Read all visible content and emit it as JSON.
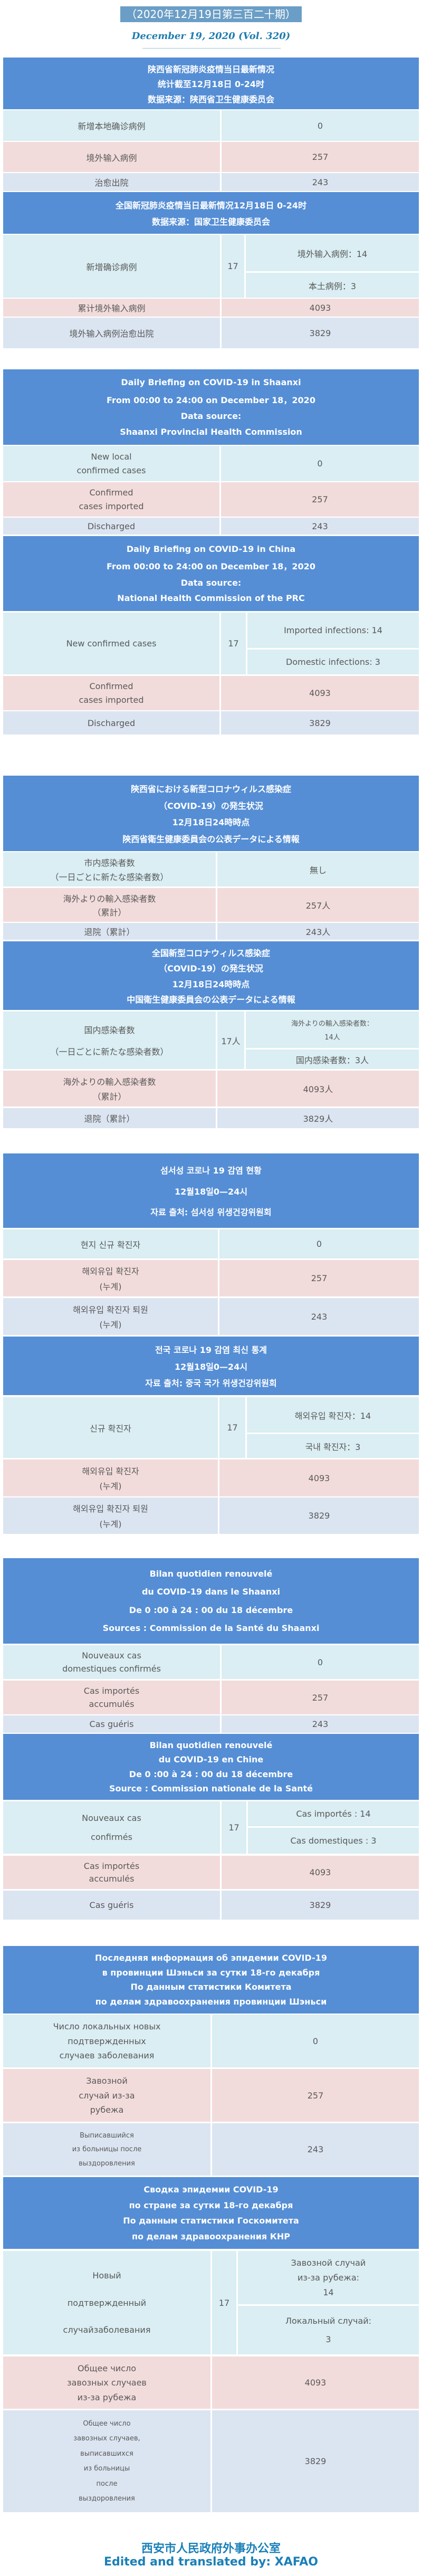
{
  "issue_badge": "（2020年12月19日第三百二十期）",
  "issue_date_en": "December 19, 2020 (Vol. 320)",
  "colors": {
    "header": "#558ed5",
    "row_new": "#daeef3",
    "row_imported": "#f2dcdb",
    "row_discharged": "#dbe5f1",
    "text": "#595959",
    "footer": "#1a80b8"
  },
  "sections": [
    {
      "header": [
        "陕西省新冠肺炎疫情当日最新情况",
        "统计截至12月18日 0-24时",
        "数据来源：陕西省卫生健康委员会"
      ],
      "rows": [
        {
          "label": [
            "新增本地确诊病例"
          ],
          "value": "0"
        },
        {
          "label": [
            "境外输入病例"
          ],
          "value": "257"
        },
        {
          "label": [
            "治愈出院"
          ],
          "value": "243"
        }
      ]
    },
    {
      "header": [
        "全国新冠肺炎疫情当日最新情况12月18日 0-24时",
        "数据来源：国家卫生健康委员会"
      ],
      "rows": [
        {
          "label": [
            "新增确诊病例"
          ],
          "total": "17",
          "sub": [
            [
              "境外输入病例：14"
            ],
            [
              "本土病例：3"
            ]
          ]
        },
        {
          "label": [
            "累计境外输入病例"
          ],
          "value": "4093"
        },
        {
          "label": [
            "境外输入病例治愈出院"
          ],
          "value": "3829"
        }
      ]
    },
    {
      "header": [
        "Daily Briefing on COVID-19 in Shaanxi",
        "From 00:00 to 24:00 on December 18，2020",
        "Data source:",
        "Shaanxi Provincial Health Commission"
      ],
      "rows": [
        {
          "label": [
            "New local",
            "confirmed cases"
          ],
          "value": "0"
        },
        {
          "label": [
            "Confirmed",
            "cases imported"
          ],
          "value": "257"
        },
        {
          "label": [
            "Discharged"
          ],
          "value": "243"
        }
      ]
    },
    {
      "header": [
        "Daily Briefing on COVID-19 in China",
        "From 00:00 to 24:00 on December 18，2020",
        "Data source:",
        "National Health Commission of the PRC"
      ],
      "rows": [
        {
          "label": [
            "New confirmed cases"
          ],
          "total": "17",
          "sub": [
            [
              "Imported infections: 14"
            ],
            [
              "Domestic infections: 3"
            ]
          ]
        },
        {
          "label": [
            "Confirmed",
            "cases imported"
          ],
          "value": "4093"
        },
        {
          "label": [
            "Discharged"
          ],
          "value": "3829"
        }
      ]
    },
    {
      "header": [
        "陝西省における新型コロナウィルス感染症",
        "（COVID-19）の発生状況",
        "12月18日24時時点",
        "陝西省衛生健康委員会の公表データによる情報"
      ],
      "rows": [
        {
          "label": [
            "市内感染者数",
            "（一日ごとに新たな感染者数）"
          ],
          "value": "無し"
        },
        {
          "label": [
            "海外よりの輸入感染者数",
            "（累計）"
          ],
          "value": "257人"
        },
        {
          "label": [
            "退院（累計）"
          ],
          "value": "243人"
        }
      ]
    },
    {
      "header": [
        "全国新型コロナウィルス感染症",
        "（COVID-19）の発生状況",
        "12月18日24時時点",
        "中国衛生健康委員会の公表データによる情報"
      ],
      "rows": [
        {
          "label": [
            "国内感染者数",
            "（一日ごとに新たな感染者数）"
          ],
          "total": "17人",
          "sub": [
            [
              "海外よりの輸入感染者数：",
              "14人"
            ],
            [
              "国内感染者数：3人"
            ]
          ]
        },
        {
          "label": [
            "海外よりの輸入感染者数",
            "（累計）"
          ],
          "value": "4093人"
        },
        {
          "label": [
            "退院（累計）"
          ],
          "value": "3829人"
        }
      ]
    },
    {
      "header": [
        "섬서성 코로나 19 감염 현황",
        "12월18일0—24시",
        "자료 출처: 섬서성 위생건강위원회"
      ],
      "rows": [
        {
          "label": [
            "현지 신규 확진자"
          ],
          "value": "0"
        },
        {
          "label": [
            "해외유입 확진자",
            "(누계)"
          ],
          "value": "257"
        },
        {
          "label": [
            "해외유입 확진자 퇴원",
            "(누계)"
          ],
          "value": "243"
        }
      ]
    },
    {
      "header": [
        "전국 코로나 19 감염 최신 통계",
        "12월18일0—24시",
        "자료 출처: 중국 국가 위생건강위원회"
      ],
      "rows": [
        {
          "label": [
            "신규 확진자"
          ],
          "total": "17",
          "sub": [
            [
              "해외유입 확진자：14"
            ],
            [
              "국내 확진자：3"
            ]
          ]
        },
        {
          "label": [
            "해외유입 확진자",
            "(누계)"
          ],
          "value": "4093"
        },
        {
          "label": [
            "해외유입 확진자 퇴원",
            "(누계)"
          ],
          "value": "3829"
        }
      ]
    },
    {
      "header": [
        "Bilan quotidien renouvelé",
        "du COVID-19 dans le Shaanxi",
        "De 0 :00 à 24 : 00 du 18 décembre",
        "Sources : Commission de la Santé du Shaanxi"
      ],
      "rows": [
        {
          "label": [
            "Nouveaux cas",
            "domestiques confirmés"
          ],
          "value": "0"
        },
        {
          "label": [
            "Cas importés",
            "accumulés"
          ],
          "value": "257"
        },
        {
          "label": [
            "Cas guéris"
          ],
          "value": "243"
        }
      ]
    },
    {
      "header": [
        "Bilan quotidien renouvelé",
        "du COVID-19 en Chine",
        "De 0 :00 à 24 : 00 du 18 décembre",
        "Source : Commission nationale de la Santé"
      ],
      "rows": [
        {
          "label": [
            "Nouveaux cas",
            "confirmés"
          ],
          "total": "17",
          "sub": [
            [
              "Cas importés : 14"
            ],
            [
              "Cas domestiques : 3"
            ]
          ]
        },
        {
          "label": [
            "Cas importés",
            "accumulés"
          ],
          "value": "4093"
        },
        {
          "label": [
            "Cas guéris"
          ],
          "value": "3829"
        }
      ]
    },
    {
      "header": [
        "Последняя информация об эпидемии COVID-19",
        "в провинции Шэньси за сутки 18-го декабря",
        "По данным статистики Комитета",
        "по делам здравоохранения провинции Шэньси"
      ],
      "rows": [
        {
          "label": [
            "Число локальных новых",
            "подтвержденных",
            "случаев заболевания"
          ],
          "value": "0"
        },
        {
          "label": [
            "Завозной",
            "случай из-за",
            "рубежа"
          ],
          "value": "257"
        },
        {
          "label": [
            "Выписавшийся",
            "из больницы после",
            "выздоровления"
          ],
          "value": "243",
          "small": true
        }
      ]
    },
    {
      "header": [
        "Сводка эпидемии COVID-19",
        "по стране за сутки 18-го декабря",
        "По данным статистики Госкомитета",
        "по делам здравоохранения КНР"
      ],
      "rows": [
        {
          "label": [
            "Новый",
            "подтвержденный",
            "случайзаболевания"
          ],
          "total": "17",
          "sub": [
            [
              "Завозной случай",
              "из-за рубежа:",
              "14"
            ],
            [
              "Локальный случай:",
              "3"
            ]
          ]
        },
        {
          "label": [
            "Общее число",
            "завозных случаев",
            "из-за рубежа"
          ],
          "value": "4093"
        },
        {
          "label": [
            "Общее число",
            "завозных случаев,",
            "выписавшихся",
            "из больницы",
            "после",
            "выздоровления"
          ],
          "value": "3829",
          "small": true
        }
      ]
    }
  ],
  "footer": {
    "office_cn": "西安市人民政府外事办公室",
    "credit_en": "Edited and translated by: XAFAO"
  }
}
